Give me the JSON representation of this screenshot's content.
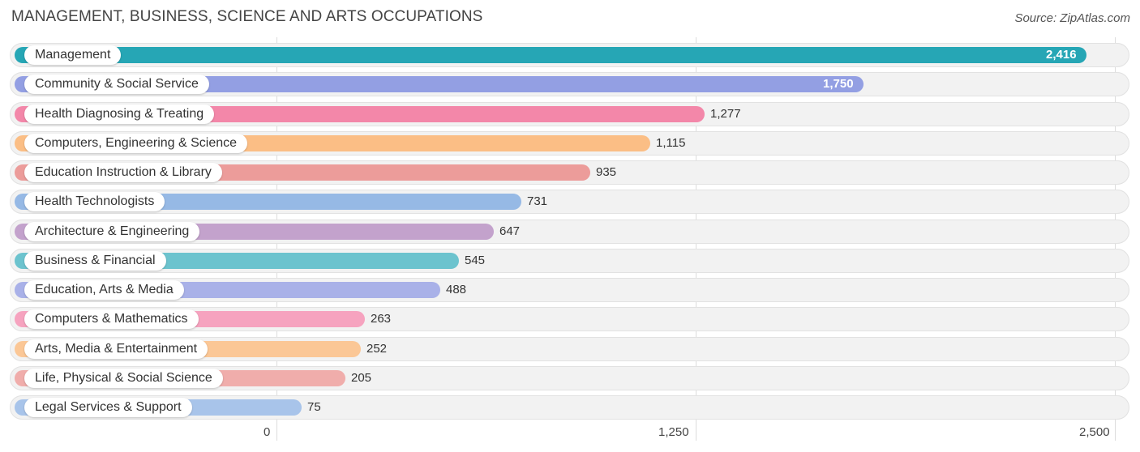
{
  "header": {
    "title": "MANAGEMENT, BUSINESS, SCIENCE AND ARTS OCCUPATIONS",
    "source": "Source: ZipAtlas.com"
  },
  "chart_data": {
    "type": "bar",
    "orientation": "horizontal",
    "title": "MANAGEMENT, BUSINESS, SCIENCE AND ARTS OCCUPATIONS",
    "xlim": [
      0,
      2500
    ],
    "grid": true,
    "categories": [
      "Management",
      "Community & Social Service",
      "Health Diagnosing & Treating",
      "Computers, Engineering & Science",
      "Education Instruction & Library",
      "Health Technologists",
      "Architecture & Engineering",
      "Business & Financial",
      "Education, Arts & Media",
      "Computers & Mathematics",
      "Arts, Media & Entertainment",
      "Life, Physical & Social Science",
      "Legal Services & Support"
    ],
    "values": [
      2416,
      1750,
      1277,
      1115,
      935,
      731,
      647,
      545,
      488,
      263,
      252,
      205,
      75
    ],
    "value_labels": [
      "2,416",
      "1,750",
      "1,277",
      "1,115",
      "935",
      "731",
      "647",
      "545",
      "488",
      "263",
      "252",
      "205",
      "75"
    ],
    "colors": [
      "#26a6b5",
      "#939fe3",
      "#f387a9",
      "#fbbe85",
      "#ec9c9a",
      "#96b9e5",
      "#c3a2cc",
      "#6cc3ce",
      "#a9b1e8",
      "#f6a3bf",
      "#fbc796",
      "#f0adab",
      "#a8c4ea"
    ],
    "ticks": [
      0,
      1250,
      2500
    ],
    "tick_labels": [
      "0",
      "1,250",
      "2,500"
    ]
  }
}
